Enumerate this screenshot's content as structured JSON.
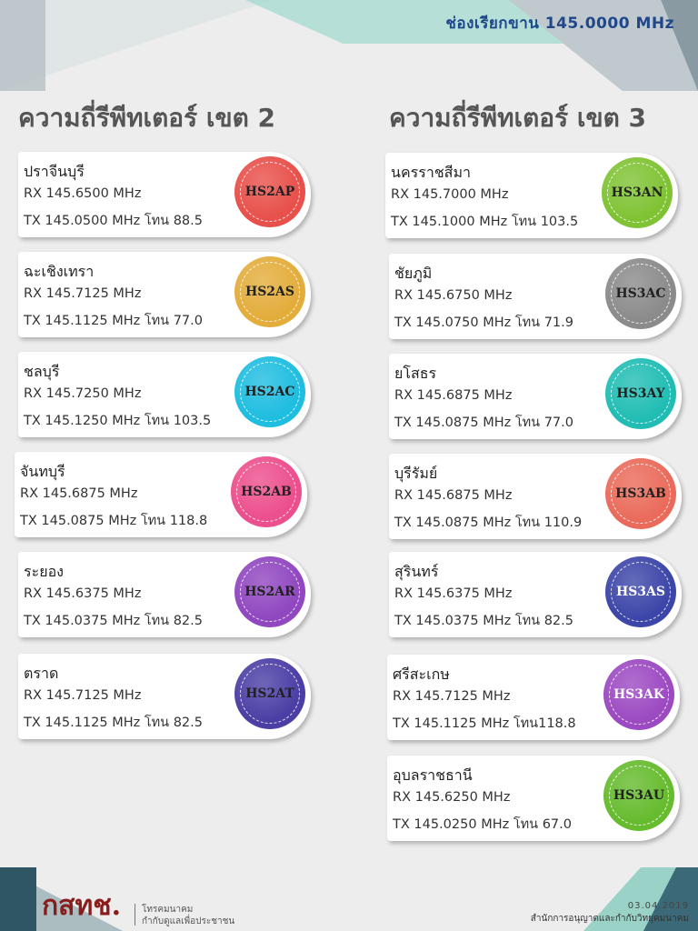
{
  "header": {
    "title": "ช่องเรียกขาน 145.0000 MHz"
  },
  "zone2": {
    "title": "ความถี่รีพีทเตอร์ เขต 2",
    "items": [
      {
        "location": "ปราจีนบุรี",
        "rx": "RX 145.6500 MHz",
        "tx": "TX 145.0500 MHz  โทน 88.5",
        "callsign": "HS2AP",
        "color": "#e8504b"
      },
      {
        "location": "ฉะเชิงเทรา",
        "rx": "RX 145.7125 MHz",
        "tx": "TX 145.1125 MHz  โทน 77.0",
        "callsign": "HS2AS",
        "color": "#e3ad3c"
      },
      {
        "location": "ชลบุรี",
        "rx": "RX 145.7250 MHz",
        "tx": "TX 145.1250 MHz  โทน 103.5",
        "callsign": "HS2AC",
        "color": "#1fbde0"
      },
      {
        "location": "จันทบุรี",
        "rx": "RX 145.6875 MHz",
        "tx": "TX 145.0875 MHz  โทน 118.8",
        "callsign": "HS2AB",
        "color": "#ec4f8d"
      },
      {
        "location": "ระยอง",
        "rx": "RX 145.6375 MHz",
        "tx": "TX 145.0375 MHz  โทน 82.5",
        "callsign": "HS2AR",
        "color": "#9047c0"
      },
      {
        "location": "ตราด",
        "rx": "RX 145.7125 MHz",
        "tx": "TX 145.1125 MHz  โทน 82.5",
        "callsign": "HS2AT",
        "color": "#4b3fa5"
      }
    ]
  },
  "zone3": {
    "title": "ความถี่รีพีทเตอร์ เขต 3",
    "items": [
      {
        "location": "นครราชสีมา",
        "rx": "RX 145.7000 MHz",
        "tx": "TX 145.1000 MHz  โทน 103.5",
        "callsign": "HS3AN",
        "color": "#7fc334"
      },
      {
        "location": "ชัยภูมิ",
        "rx": "RX 145.6750 MHz",
        "tx": "TX 145.0750 MHz  โทน 71.9",
        "callsign": "HS3AC",
        "color": "#8b8b8b"
      },
      {
        "location": "ยโสธร",
        "rx": "RX 145.6875 MHz",
        "tx": "TX 145.0875 MHz  โทน 77.0",
        "callsign": "HS3AY",
        "color": "#21bdb4"
      },
      {
        "location": "บุรีรัมย์",
        "rx": "RX 145.6875 MHz",
        "tx": "TX 145.0875 MHz  โทน 110.9",
        "callsign": "HS3AB",
        "color": "#ea6b5b"
      },
      {
        "location": "สุรินทร์",
        "rx": "RX 145.6375 MHz",
        "tx": "TX 145.0375 MHz  โทน 82.5",
        "callsign": "HS3AS",
        "color": "#3c46a8"
      },
      {
        "location": "ศรีสะเกษ",
        "rx": "RX 145.7125 MHz",
        "tx": "TX 145.1125 MHz  โทน118.8",
        "callsign": "HS3AK",
        "color": "#9c4ac2"
      },
      {
        "location": "อุบลราชธานี",
        "rx": "RX 145.6250 MHz",
        "tx": "TX 145.0250 MHz  โทน 67.0",
        "callsign": "HS3AU",
        "color": "#66bb2e"
      }
    ]
  },
  "footer": {
    "logo": "กสทช.",
    "tagline_line1": "โทรคมนาคม",
    "tagline_line2": "กำกับดูแลเพื่อประชาชน",
    "date": "03.04.2019",
    "agency": "สำนักการอนุญาตและกำกับวิทยุคมนาคม"
  }
}
